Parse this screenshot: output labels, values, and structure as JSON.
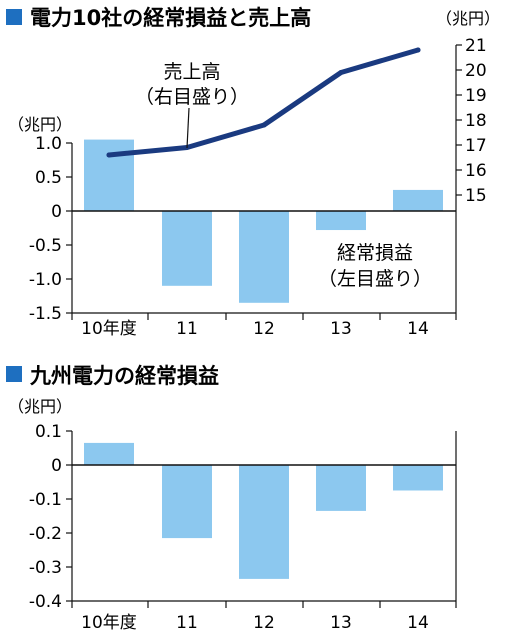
{
  "chart_data": [
    {
      "type": "bar+line",
      "title": "電力10社の経常損益と売上高",
      "categories": [
        "10年度",
        "11",
        "12",
        "13",
        "14"
      ],
      "bar_series": {
        "label": "経常損益",
        "axis_note": "（左目盛り）",
        "values": [
          1.05,
          -1.1,
          -1.35,
          -0.28,
          0.31
        ],
        "axis_unit": "（兆円）",
        "ylim": [
          -1.5,
          1.0
        ],
        "ticks": [
          "1.0",
          "0.5",
          "0",
          "-0.5",
          "-1.0",
          "-1.5"
        ],
        "tick_values": [
          1.0,
          0.5,
          0,
          -0.5,
          -1.0,
          -1.5
        ]
      },
      "line_series": {
        "label": "売上高",
        "axis_note": "（右目盛り）",
        "values": [
          16.6,
          16.9,
          17.8,
          19.9,
          20.8
        ],
        "axis_unit": "（兆円）",
        "ylim": [
          15,
          21
        ],
        "ticks": [
          "21",
          "20",
          "19",
          "18",
          "17",
          "16",
          "15"
        ],
        "tick_values": [
          21,
          20,
          19,
          18,
          17,
          16,
          15
        ]
      }
    },
    {
      "type": "bar",
      "title": "九州電力の経常損益",
      "categories": [
        "10年度",
        "11",
        "12",
        "13",
        "14"
      ],
      "values": [
        0.065,
        -0.215,
        -0.335,
        -0.135,
        -0.075
      ],
      "ylabel": "（兆円）",
      "ylim": [
        -0.4,
        0.1
      ],
      "ticks": [
        "0.1",
        "0",
        "-0.1",
        "-0.2",
        "-0.3",
        "-0.4"
      ],
      "tick_values": [
        0.1,
        0,
        -0.1,
        -0.2,
        -0.3,
        -0.4
      ]
    }
  ],
  "colors": {
    "bar": "#8cc8ef",
    "line": "#1a3a80",
    "title_marker": "#1e6fc0",
    "axis": "#111111"
  }
}
